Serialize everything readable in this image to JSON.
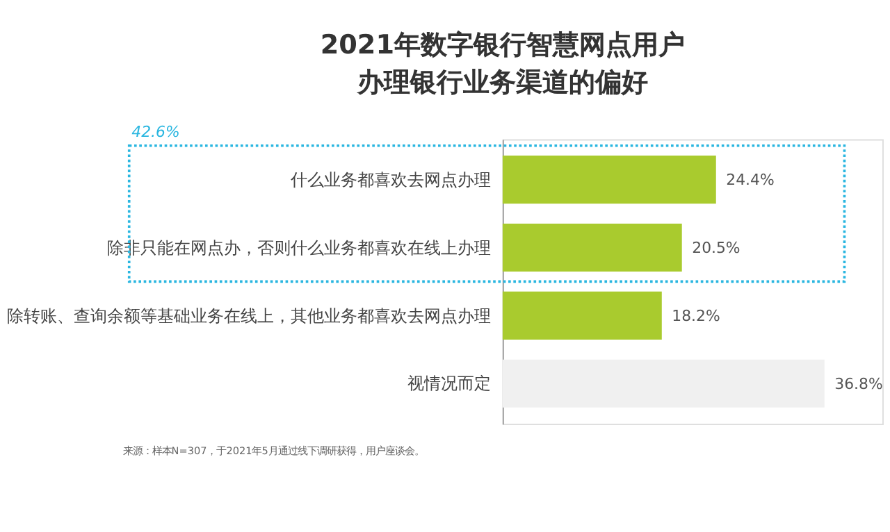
{
  "chart_data": {
    "type": "bar",
    "orientation": "horizontal",
    "title": "2021年数字银行智慧网点用户办理银行业务渠道的偏好",
    "categories": [
      "什么业务都喜欢去网点办理",
      "除非只能在网点办，否则什么业务都喜欢在线上办理",
      "除转账、查询余额等基础业务在线上，其他业务都喜欢去网点办理",
      "视情况而定"
    ],
    "values": [
      24.4,
      20.5,
      18.2,
      36.8
    ],
    "colors": [
      "#a9cb2e",
      "#a9cb2e",
      "#a9cb2e",
      "#f0f0f0"
    ],
    "value_labels": [
      "24.4%",
      "20.5%",
      "18.2%",
      "36.8%"
    ],
    "annotations": [
      "42.6%",
      "来源：样本N=307，于2021年5月通过线下调研获得，用户座谈会。"
    ]
  }
}
